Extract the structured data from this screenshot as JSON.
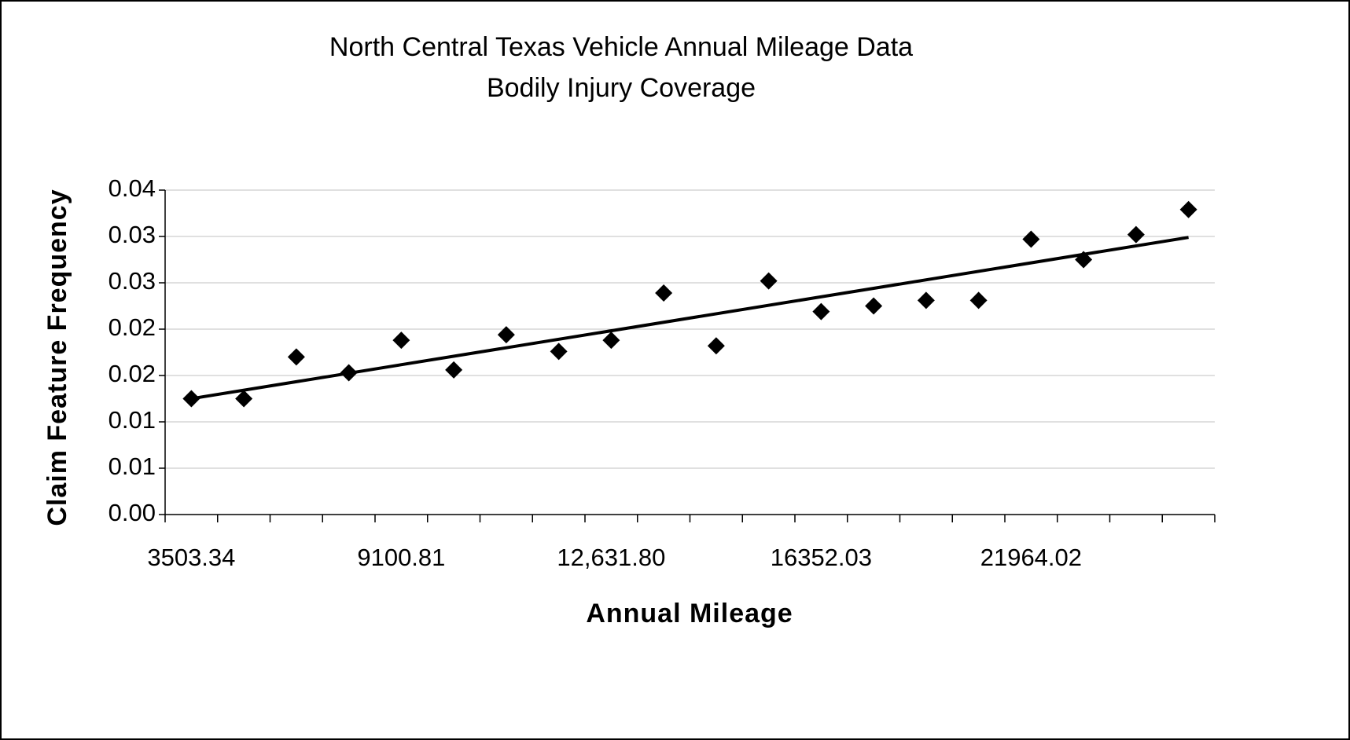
{
  "chart_data": {
    "type": "scatter",
    "title": "North Central Texas Vehicle Annual Mileage Data",
    "subtitle": "Bodily Injury Coverage",
    "x_label": "Annual Mileage",
    "y_label": "Claim Feature Frequency",
    "categories": [
      "3503.34",
      null,
      null,
      null,
      "9100.81",
      null,
      null,
      null,
      "12,631.80",
      null,
      null,
      null,
      "16352.03",
      null,
      null,
      null,
      "21964.02",
      null,
      null,
      null
    ],
    "values": [
      0.0125,
      0.0125,
      0.017,
      0.0153,
      0.0188,
      0.0156,
      0.0194,
      0.0176,
      0.0188,
      0.0239,
      0.0182,
      0.0252,
      0.0219,
      0.0225,
      0.0231,
      0.0231,
      0.0297,
      0.0275,
      0.0302,
      0.0329
    ],
    "color": "#000000",
    "trendline": {
      "values": [
        0.0125,
        0.0299
      ],
      "color": "#000000"
    },
    "ylim": [
      0,
      0.035
    ],
    "yticks": [
      {
        "value": 0,
        "label": "0.00"
      },
      {
        "value": 0.005,
        "label": "0.01"
      },
      {
        "value": 0.01,
        "label": "0.01"
      },
      {
        "value": 0.015,
        "label": "0.02"
      },
      {
        "value": 0.02,
        "label": "0.02"
      },
      {
        "value": 0.025,
        "label": "0.03"
      },
      {
        "value": 0.03,
        "label": "0.03"
      },
      {
        "value": 0.035,
        "label": "0.04"
      }
    ],
    "grid": true
  }
}
